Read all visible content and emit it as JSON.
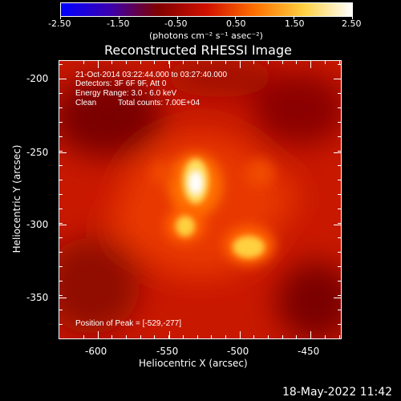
{
  "colorbar": {
    "tick_labels": [
      "-2.50",
      "-1.50",
      "-0.50",
      "0.50",
      "1.50",
      "2.50"
    ],
    "unit_label": "(photons cm⁻² s⁻¹ asec⁻²)"
  },
  "title": "Reconstructed RHESSI Image",
  "info": {
    "line1": "21-Oct-2014 03:22:44.000 to 03:27:40.000",
    "line2": "Detectors: 3F 6F 9F, Att 0",
    "line3": "Energy Range: 3.0 - 6.0 keV",
    "line4_left": "Clean",
    "line4_right": "Total counts: 7.00E+04"
  },
  "peak_label": "Position of Peak = [-529,-277]",
  "axes": {
    "x_label": "Heliocentric X (arcsec)",
    "y_label": "Heliocentric Y (arcsec)",
    "x_ticks": [
      "-600",
      "-550",
      "-500",
      "-450"
    ],
    "y_ticks": [
      "-200",
      "-250",
      "-300",
      "-350"
    ]
  },
  "timestamp": "18-May-2022 11:42",
  "colors": {
    "colormap": [
      "#0000ff",
      "#3a00b0",
      "#800000",
      "#d01000",
      "#ff7000",
      "#ffd040",
      "#ffffff"
    ]
  }
}
